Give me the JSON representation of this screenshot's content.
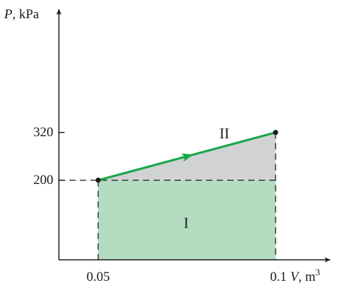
{
  "chart_data": {
    "type": "area",
    "title": "",
    "xlabel": {
      "symbol": "V",
      "unit": ", m",
      "unit_sup": "3"
    },
    "ylabel": {
      "symbol": "P",
      "unit": ", kPa"
    },
    "x_ticks": [
      {
        "value": 0.05,
        "label": "0.05"
      },
      {
        "value": 0.1,
        "label": "0.1"
      }
    ],
    "y_ticks": [
      {
        "value": 200,
        "label": "200"
      },
      {
        "value": 320,
        "label": "320"
      }
    ],
    "xlim": [
      0.0,
      0.12
    ],
    "ylim": [
      0,
      420
    ],
    "process": {
      "points": [
        {
          "V": 0.05,
          "P": 200
        },
        {
          "V": 0.1,
          "P": 320
        }
      ],
      "direction": "increasing V"
    },
    "regions": [
      {
        "label": "I",
        "V_range": [
          0.05,
          0.1
        ],
        "P_range": [
          0,
          200
        ],
        "shape": "rectangle"
      },
      {
        "label": "II",
        "V_range": [
          0.05,
          0.1
        ],
        "P_range": [
          200,
          320
        ],
        "shape": "triangle"
      }
    ],
    "colors": {
      "line": "#1aa64a",
      "region_I": "#b3dcc0",
      "region_II": "#d1d2d4",
      "axes": "#1a1a1a"
    }
  }
}
